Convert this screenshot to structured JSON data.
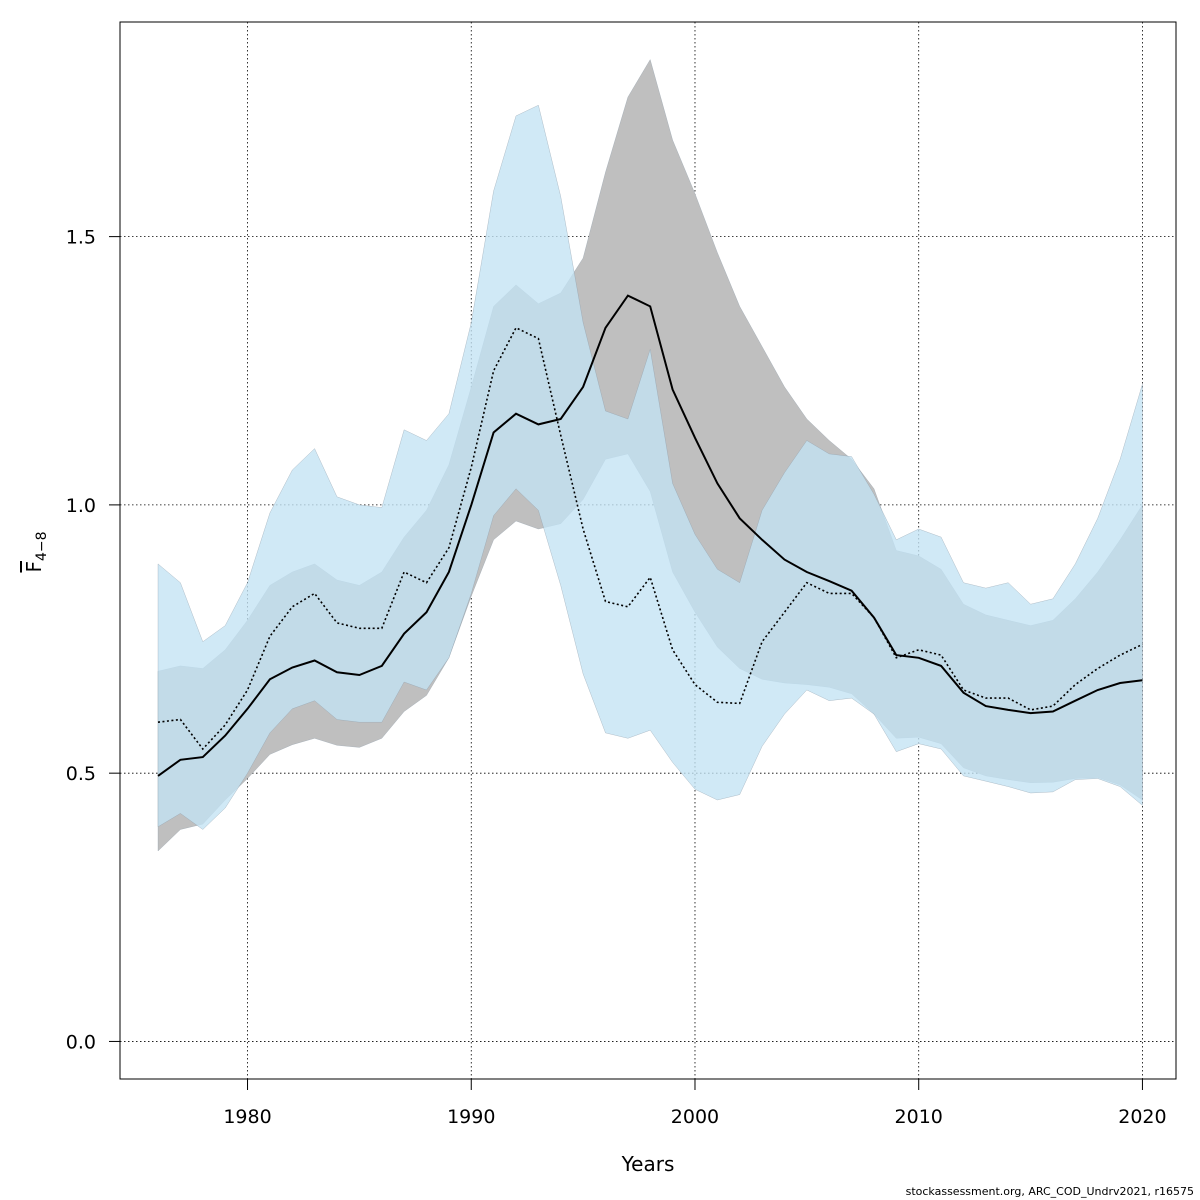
{
  "chart_data": {
    "type": "area",
    "xlabel": "Years",
    "ylabel": "F",
    "ylabel_subscript": "4−8",
    "xlim": [
      1974.3,
      2021.5
    ],
    "ylim": [
      -0.07,
      1.9
    ],
    "x_ticks": [
      1980,
      1990,
      2000,
      2010,
      2020
    ],
    "y_ticks": [
      0.0,
      0.5,
      1.0,
      1.5
    ],
    "x_tick_labels": [
      "1980",
      "1990",
      "2000",
      "2010",
      "2020"
    ],
    "y_tick_labels": [
      "0.0",
      "0.5",
      "1.0",
      "1.5"
    ],
    "grid": true,
    "x": [
      1976,
      1977,
      1978,
      1979,
      1980,
      1981,
      1982,
      1983,
      1984,
      1985,
      1986,
      1987,
      1988,
      1989,
      1990,
      1991,
      1992,
      1993,
      1994,
      1995,
      1996,
      1997,
      1998,
      1999,
      2000,
      2001,
      2002,
      2003,
      2004,
      2005,
      2006,
      2007,
      2008,
      2009,
      2010,
      2011,
      2012,
      2013,
      2014,
      2015,
      2016,
      2017,
      2018,
      2019,
      2020
    ],
    "series": [
      {
        "style": "solid",
        "color": "#000000",
        "band_color": "#bfbfbf",
        "values": [
          0.495,
          0.525,
          0.53,
          0.57,
          0.62,
          0.675,
          0.697,
          0.71,
          0.688,
          0.683,
          0.7,
          0.76,
          0.8,
          0.875,
          1.0,
          1.135,
          1.17,
          1.15,
          1.16,
          1.22,
          1.33,
          1.39,
          1.37,
          1.215,
          1.125,
          1.04,
          0.975,
          0.935,
          0.898,
          0.875,
          0.858,
          0.84,
          0.79,
          0.72,
          0.715,
          0.7,
          0.65,
          0.625,
          0.618,
          0.612,
          0.615,
          0.635,
          0.655,
          0.668,
          0.673
        ],
        "lower": [
          0.355,
          0.395,
          0.405,
          0.45,
          0.49,
          0.535,
          0.553,
          0.565,
          0.552,
          0.548,
          0.565,
          0.615,
          0.645,
          0.715,
          0.83,
          0.935,
          0.97,
          0.955,
          0.965,
          1.01,
          1.085,
          1.095,
          1.025,
          0.875,
          0.8,
          0.735,
          0.695,
          0.675,
          0.668,
          0.665,
          0.66,
          0.648,
          0.61,
          0.565,
          0.567,
          0.555,
          0.51,
          0.495,
          0.488,
          0.482,
          0.483,
          0.49,
          0.492,
          0.478,
          0.45
        ],
        "upper": [
          0.69,
          0.7,
          0.695,
          0.73,
          0.785,
          0.85,
          0.875,
          0.89,
          0.86,
          0.85,
          0.875,
          0.94,
          0.99,
          1.075,
          1.22,
          1.37,
          1.41,
          1.375,
          1.395,
          1.46,
          1.62,
          1.76,
          1.83,
          1.68,
          1.58,
          1.47,
          1.37,
          1.295,
          1.22,
          1.16,
          1.12,
          1.085,
          1.03,
          0.915,
          0.905,
          0.88,
          0.815,
          0.795,
          0.785,
          0.775,
          0.785,
          0.825,
          0.875,
          0.935,
          1.0
        ]
      },
      {
        "style": "dotted",
        "color": "#000000",
        "band_color": "#c3e3f4",
        "values": [
          0.595,
          0.6,
          0.545,
          0.59,
          0.655,
          0.755,
          0.81,
          0.835,
          0.78,
          0.77,
          0.77,
          0.875,
          0.855,
          0.92,
          1.07,
          1.25,
          1.33,
          1.31,
          1.13,
          0.955,
          0.82,
          0.81,
          0.865,
          0.73,
          0.665,
          0.632,
          0.63,
          0.745,
          0.8,
          0.855,
          0.835,
          0.835,
          0.79,
          0.715,
          0.73,
          0.72,
          0.655,
          0.64,
          0.64,
          0.618,
          0.625,
          0.665,
          0.695,
          0.72,
          0.74
        ],
        "lower": [
          0.4,
          0.425,
          0.395,
          0.435,
          0.5,
          0.575,
          0.62,
          0.635,
          0.6,
          0.595,
          0.595,
          0.67,
          0.655,
          0.715,
          0.835,
          0.98,
          1.03,
          0.99,
          0.85,
          0.685,
          0.575,
          0.565,
          0.58,
          0.52,
          0.47,
          0.45,
          0.46,
          0.55,
          0.61,
          0.655,
          0.635,
          0.64,
          0.61,
          0.54,
          0.555,
          0.545,
          0.495,
          0.485,
          0.475,
          0.463,
          0.465,
          0.488,
          0.49,
          0.475,
          0.44
        ],
        "upper": [
          0.89,
          0.855,
          0.745,
          0.775,
          0.855,
          0.985,
          1.065,
          1.105,
          1.015,
          1.0,
          0.995,
          1.14,
          1.12,
          1.17,
          1.34,
          1.585,
          1.725,
          1.745,
          1.575,
          1.34,
          1.175,
          1.16,
          1.29,
          1.04,
          0.945,
          0.88,
          0.855,
          0.99,
          1.06,
          1.12,
          1.095,
          1.09,
          1.02,
          0.935,
          0.955,
          0.94,
          0.855,
          0.845,
          0.855,
          0.815,
          0.825,
          0.89,
          0.975,
          1.085,
          1.225
        ]
      }
    ]
  },
  "footer": {
    "credit": "stockassessment.org, ARC_COD_Undrv2021, r16575"
  }
}
